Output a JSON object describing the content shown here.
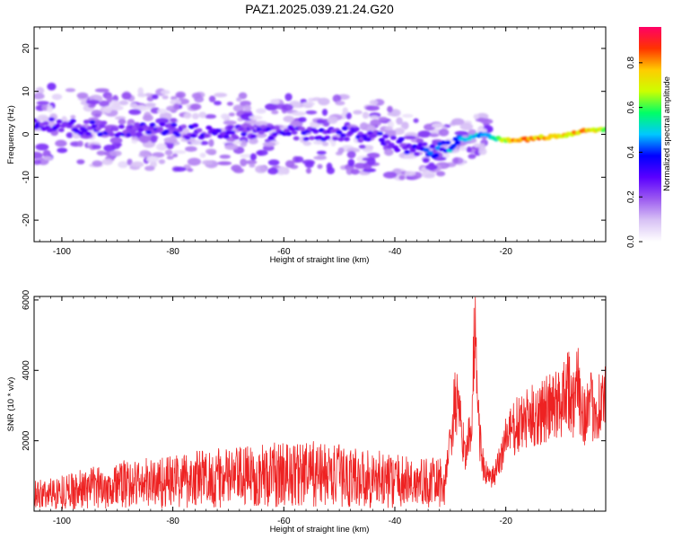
{
  "chart_data": [
    {
      "type": "heatmap",
      "title": "PAZ1.2025.039.21.24.G20",
      "xlabel": "Height of straight line (km)",
      "ylabel": "Frequency (Hz)",
      "xlim": [
        -105,
        -2
      ],
      "ylim": [
        -25,
        25
      ],
      "x_ticks": [
        "-100",
        "-80",
        "-60",
        "-40",
        "-20"
      ],
      "x_tick_values": [
        -100,
        -80,
        -60,
        -40,
        -20
      ],
      "y_ticks": [
        "-20",
        "-10",
        "0",
        "10",
        "20"
      ],
      "y_tick_values": [
        -20,
        -10,
        0,
        10,
        20
      ],
      "colorbar": {
        "label": "Normalized spectral amplitude",
        "ticks": [
          "0.0",
          "0.2",
          "0.4",
          "0.6",
          "0.8"
        ],
        "tick_values": [
          0,
          0.2,
          0.4,
          0.6,
          0.8
        ],
        "range": [
          0,
          0.96
        ],
        "colors": [
          "#ffffff",
          "#d8c2f5",
          "#9b59f0",
          "#5a00ff",
          "#0000ff",
          "#00c8ff",
          "#00ff66",
          "#ccff00",
          "#ffcc00",
          "#ff3300",
          "#ff0066"
        ]
      },
      "ridge": {
        "height_km": [
          -104,
          -95,
          -85,
          -75,
          -65,
          -55,
          -45,
          -38,
          -33,
          -29,
          -26,
          -24,
          -22,
          -18,
          -14,
          -10,
          -6,
          -2
        ],
        "frequency_hz": [
          2.5,
          1.5,
          1.0,
          0.6,
          0.4,
          0.3,
          0.0,
          -3.0,
          -4.0,
          -2.0,
          -0.5,
          0.0,
          -1.0,
          -1.5,
          -0.8,
          -0.4,
          0.8,
          1.0
        ],
        "amplitude": [
          0.3,
          0.3,
          0.3,
          0.3,
          0.3,
          0.3,
          0.3,
          0.3,
          0.4,
          0.5,
          0.55,
          0.5,
          0.6,
          0.9,
          0.85,
          0.8,
          0.85,
          0.7
        ]
      }
    },
    {
      "type": "line",
      "title": "",
      "xlabel": "Height of straight line (km)",
      "ylabel": "SNR (10 * v/v)",
      "xlim": [
        -105,
        -2
      ],
      "ylim": [
        0,
        6100
      ],
      "x_ticks": [
        "-100",
        "-80",
        "-60",
        "-40",
        "-20"
      ],
      "x_tick_values": [
        -100,
        -80,
        -60,
        -40,
        -20
      ],
      "y_ticks": [
        "2000",
        "4000",
        "6000"
      ],
      "y_tick_values": [
        2000,
        4000,
        6000
      ],
      "color": "#ee2222",
      "series": [
        {
          "x": [
            -105,
            -100,
            -95,
            -90,
            -85,
            -80,
            -75,
            -70,
            -65,
            -60,
            -55,
            -50,
            -45,
            -40,
            -35,
            -31,
            -29,
            -28,
            -27,
            -26,
            -25.5,
            -25,
            -24,
            -23,
            -22,
            -21,
            -20,
            -18,
            -16,
            -14,
            -12,
            -10,
            -9,
            -8,
            -7,
            -6,
            -5,
            -4,
            -3,
            -2
          ],
          "y": [
            450,
            550,
            650,
            750,
            800,
            850,
            950,
            950,
            1000,
            1050,
            1050,
            1000,
            950,
            850,
            800,
            800,
            3200,
            2200,
            1600,
            2800,
            6100,
            2600,
            1200,
            900,
            1000,
            1500,
            2100,
            2400,
            2600,
            2800,
            2900,
            3100,
            3800,
            3000,
            3500,
            2800,
            2900,
            2950,
            3050,
            3150
          ]
        }
      ]
    }
  ]
}
